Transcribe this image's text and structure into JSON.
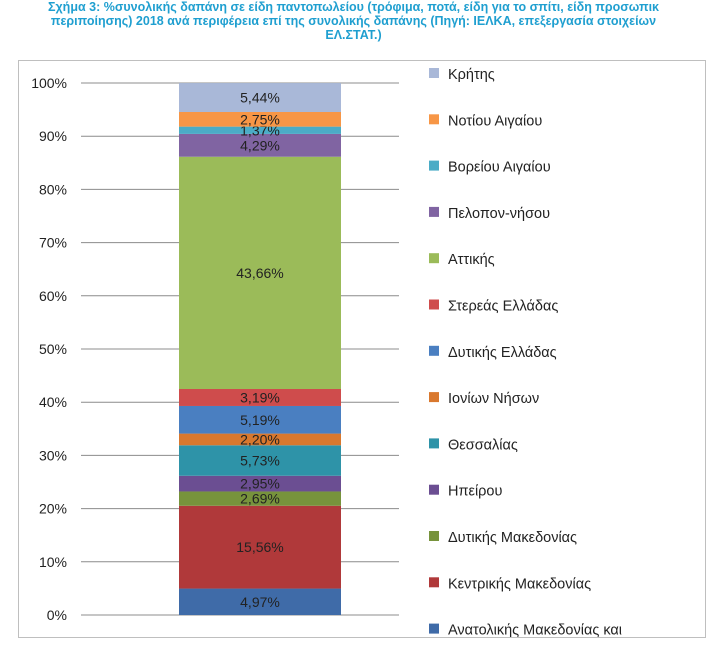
{
  "title_lines": [
    "Σχήμα 3: %συνολικής δαπάνη σε είδη παντοπωλείου (τρόφιμα, ποτά, είδη για το σπίτι, είδη προσωπικ",
    "περιποίησης) 2018 ανά περιφέρεια επί της συνολικής δαπάνης (Πηγή: ΙΕΛΚΑ, επεξεργασία στοιχείων",
    "ΕΛ.ΣΤΑΤ.)"
  ],
  "colors": {
    "title": "#1f9fd0",
    "gridline": "#8c8c8c",
    "text": "#222222"
  },
  "chart_data": {
    "type": "bar",
    "stacked": true,
    "categories": [
      ""
    ],
    "ylim": [
      0,
      100
    ],
    "yticks": [
      "0%",
      "10%",
      "20%",
      "30%",
      "40%",
      "50%",
      "60%",
      "70%",
      "80%",
      "90%",
      "100%"
    ],
    "grid": true,
    "legend_position": "right",
    "series": [
      {
        "name": "Ανατολικής Μακεδονίας και Θράκης",
        "value": 4.97,
        "label": "4,97%",
        "color": "#3f6ba8"
      },
      {
        "name": "Κεντρικής Μακεδονίας",
        "value": 15.56,
        "label": "15,56%",
        "color": "#b0393a"
      },
      {
        "name": "Δυτικής Μακεδονίας",
        "value": 2.69,
        "label": "2,69%",
        "color": "#77933c"
      },
      {
        "name": "Ηπείρου",
        "value": 2.95,
        "label": "2,95%",
        "color": "#6b4e92"
      },
      {
        "name": "Θεσσαλίας",
        "value": 5.73,
        "label": "5,73%",
        "color": "#2e93a8"
      },
      {
        "name": "Ιονίων Νήσων",
        "value": 2.2,
        "label": "2,20%",
        "color": "#d9782e"
      },
      {
        "name": "Δυτικής Ελλάδας",
        "value": 5.19,
        "label": "5,19%",
        "color": "#4a7fc1"
      },
      {
        "name": "Στερεάς Ελλάδας",
        "value": 3.19,
        "label": "3,19%",
        "color": "#cf4c4c"
      },
      {
        "name": "Αττικής",
        "value": 43.66,
        "label": "43,66%",
        "color": "#9bbb59"
      },
      {
        "name": "Πελοπον-νήσου",
        "value": 4.29,
        "label": "4,29%",
        "color": "#8064a2"
      },
      {
        "name": "Βορείου Αιγαίου",
        "value": 1.37,
        "label": "1,37%",
        "color": "#4bacc6"
      },
      {
        "name": "Νοτίου Αιγαίου",
        "value": 2.75,
        "label": "2,75%",
        "color": "#f79646"
      },
      {
        "name": "Κρήτης",
        "value": 5.44,
        "label": "5,44%",
        "color": "#a9b8d8"
      }
    ]
  }
}
